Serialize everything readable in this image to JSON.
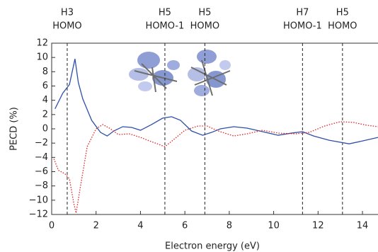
{
  "chart_data": {
    "type": "line",
    "x_label": "Electron energy (eV)",
    "y_label": "PECD (%)",
    "xlim": [
      0,
      14.7
    ],
    "ylim": [
      -12,
      12
    ],
    "xticks": [
      0,
      2,
      4,
      6,
      8,
      10,
      12,
      14
    ],
    "yticks": [
      {
        "value": -12,
        "label": "−12"
      },
      {
        "value": -10,
        "label": "−10"
      },
      {
        "value": -8,
        "label": "−8"
      },
      {
        "value": -6,
        "label": "−6"
      },
      {
        "value": -4,
        "label": "−4"
      },
      {
        "value": -2,
        "label": "−2"
      },
      0,
      2,
      4,
      6,
      8,
      10,
      12
    ],
    "markers": [
      {
        "x": 0.7,
        "label": [
          "H3",
          "HOMO"
        ]
      },
      {
        "x": 5.1,
        "label": [
          "H5",
          "HOMO-1"
        ]
      },
      {
        "x": 6.9,
        "label": [
          "H5",
          "HOMO"
        ]
      },
      {
        "x": 11.3,
        "label": [
          "H7",
          "HOMO-1"
        ]
      },
      {
        "x": 13.1,
        "label": [
          "H5",
          "HOMO"
        ]
      }
    ],
    "series": [
      {
        "color": "#2e4fa8",
        "style": "solid",
        "x": [
          0.15,
          0.5,
          0.8,
          1.05,
          1.2,
          1.4,
          1.8,
          2.2,
          2.5,
          2.8,
          3.2,
          3.6,
          4.0,
          4.5,
          5.0,
          5.4,
          5.8,
          6.3,
          6.8,
          7.2,
          7.6,
          8.2,
          8.8,
          9.5,
          10.2,
          10.8,
          11.3,
          11.8,
          12.5,
          13.4,
          14.0,
          14.7
        ],
        "values": [
          2.8,
          5,
          6.2,
          9.8,
          6.5,
          4.2,
          1.2,
          -0.5,
          -1,
          -0.3,
          0.3,
          0.2,
          -0.2,
          0.6,
          1.5,
          1.7,
          1.2,
          -0.3,
          -0.9,
          -0.5,
          0,
          0.3,
          0.1,
          -0.4,
          -0.9,
          -0.6,
          -0.4,
          -1,
          -1.6,
          -2.1,
          -1.7,
          -1.2
        ]
      },
      {
        "color": "#e02020",
        "style": "dotted",
        "x": [
          0.1,
          0.3,
          0.6,
          0.8,
          1.0,
          1.1,
          1.3,
          1.6,
          2.0,
          2.3,
          2.6,
          3.0,
          3.5,
          4.0,
          4.5,
          5.1,
          5.5,
          6.0,
          6.6,
          7.0,
          7.5,
          8.2,
          8.8,
          9.5,
          10.2,
          11.0,
          11.6,
          12.3,
          13.0,
          13.6,
          14.2,
          14.7
        ],
        "values": [
          -4.2,
          -5.8,
          -6.3,
          -7,
          -10.5,
          -11.8,
          -8,
          -2.5,
          0,
          0.6,
          0.1,
          -0.8,
          -0.7,
          -1.2,
          -1.8,
          -2.5,
          -1.5,
          -0.2,
          0.4,
          0.4,
          -0.3,
          -1,
          -0.7,
          -0.2,
          -0.6,
          -0.7,
          -0.5,
          0.4,
          1,
          0.9,
          0.5,
          0.3
        ]
      }
    ]
  }
}
